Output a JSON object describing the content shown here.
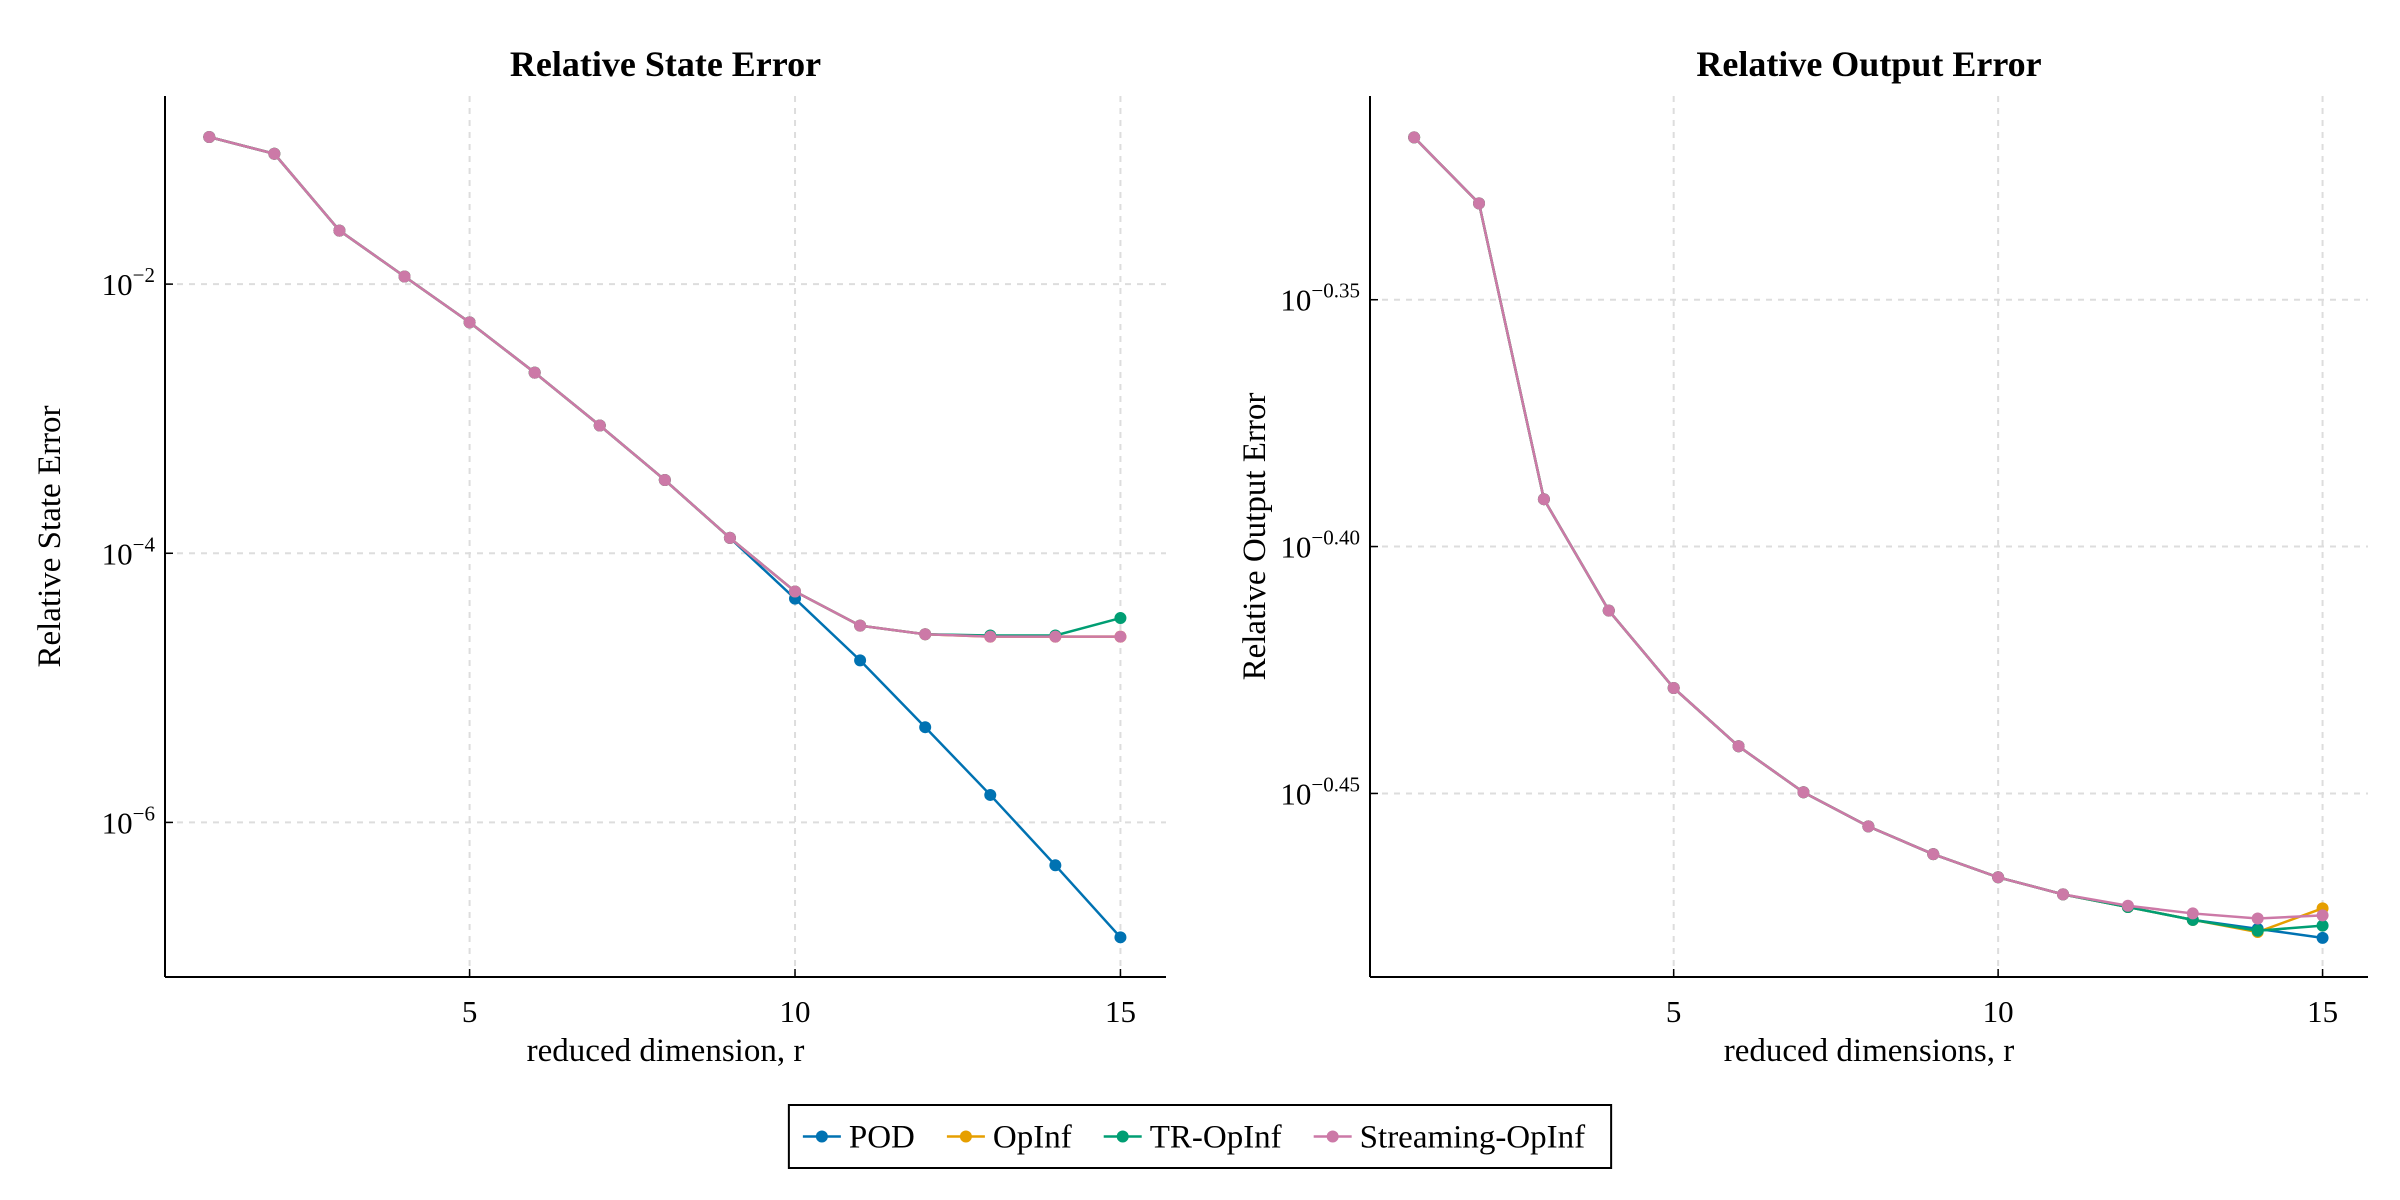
{
  "chart_data": [
    {
      "type": "line",
      "title": "Relative State Error",
      "xlabel": "reduced dimension, r",
      "ylabel": "Relative State Error",
      "x": [
        1,
        2,
        3,
        4,
        5,
        6,
        7,
        8,
        9,
        10,
        11,
        12,
        13,
        14,
        15
      ],
      "xlim": [
        0.32,
        15.7
      ],
      "xticks": [
        5,
        10,
        15
      ],
      "ylim": [
        7.1e-08,
        0.25
      ],
      "log_y": true,
      "grid": true,
      "yticks": [
        {
          "value": 0.01,
          "label": "10^−2"
        },
        {
          "value": 0.0001,
          "label": "10^−4"
        },
        {
          "value": 1e-06,
          "label": "10^−6"
        }
      ],
      "series": [
        {
          "name": "POD",
          "color": "#0072b2",
          "values": [
            0.124,
            0.093,
            0.025,
            0.0114,
            0.0052,
            0.0022,
            0.00089,
            0.00035,
            0.00013,
            4.6e-05,
            1.6e-05,
            5.1e-06,
            1.6e-06,
            4.8e-07,
            1.4e-07
          ]
        },
        {
          "name": "OpInf",
          "color": "#e69f00",
          "values": [
            0.124,
            0.093,
            0.025,
            0.0114,
            0.0052,
            0.0022,
            0.00089,
            0.00035,
            0.00013,
            5.2e-05,
            2.9e-05,
            2.5e-05,
            2.4e-05,
            2.4e-05,
            2.4e-05
          ]
        },
        {
          "name": "TR-OpInf",
          "color": "#009e73",
          "values": [
            0.124,
            0.093,
            0.025,
            0.0114,
            0.0052,
            0.0022,
            0.00089,
            0.00035,
            0.00013,
            5.2e-05,
            2.9e-05,
            2.5e-05,
            2.45e-05,
            2.45e-05,
            3.3e-05
          ]
        },
        {
          "name": "Streaming-OpInf",
          "color": "#cc79a7",
          "values": [
            0.124,
            0.093,
            0.025,
            0.0114,
            0.0052,
            0.0022,
            0.00089,
            0.00035,
            0.00013,
            5.2e-05,
            2.9e-05,
            2.5e-05,
            2.4e-05,
            2.4e-05,
            2.4e-05
          ]
        }
      ]
    },
    {
      "type": "line",
      "title": "Relative Output Error",
      "xlabel": "reduced dimensions, r",
      "ylabel": "Relative Output Error",
      "x": [
        1,
        2,
        3,
        4,
        5,
        6,
        7,
        8,
        9,
        10,
        11,
        12,
        13,
        14,
        15
      ],
      "xlim": [
        0.32,
        15.7
      ],
      "xticks": [
        5,
        10,
        15
      ],
      "ylim": [
        0.3257,
        0.4912
      ],
      "log_y": true,
      "grid": true,
      "yticks": [
        {
          "value": 0.44668,
          "label": "10^−0.35"
        },
        {
          "value": 0.39811,
          "label": "10^−0.40"
        },
        {
          "value": 0.35481,
          "label": "10^−0.45"
        }
      ],
      "series": [
        {
          "color": "#0072b2",
          "values": [
            0.4818,
            0.4672,
            0.407,
            0.3864,
            0.3727,
            0.3627,
            0.355,
            0.3494,
            0.3449,
            0.3412,
            0.3385,
            0.3365,
            0.3345,
            0.3331,
            0.3317
          ]
        },
        {
          "color": "#e69f00",
          "values": [
            0.4818,
            0.4672,
            0.407,
            0.3864,
            0.3727,
            0.3627,
            0.355,
            0.3494,
            0.3449,
            0.3412,
            0.3385,
            0.3365,
            0.3345,
            0.3326,
            0.3363
          ]
        },
        {
          "color": "#009e73",
          "values": [
            0.4818,
            0.4672,
            0.407,
            0.3864,
            0.3727,
            0.3627,
            0.355,
            0.3494,
            0.3449,
            0.3412,
            0.3385,
            0.3365,
            0.3345,
            0.3328,
            0.3336
          ]
        },
        {
          "color": "#cc79a7",
          "values": [
            0.4818,
            0.4672,
            0.407,
            0.3864,
            0.3727,
            0.3627,
            0.355,
            0.3494,
            0.3449,
            0.3412,
            0.3385,
            0.3367,
            0.3355,
            0.3347,
            0.3352
          ]
        }
      ]
    }
  ]
}
